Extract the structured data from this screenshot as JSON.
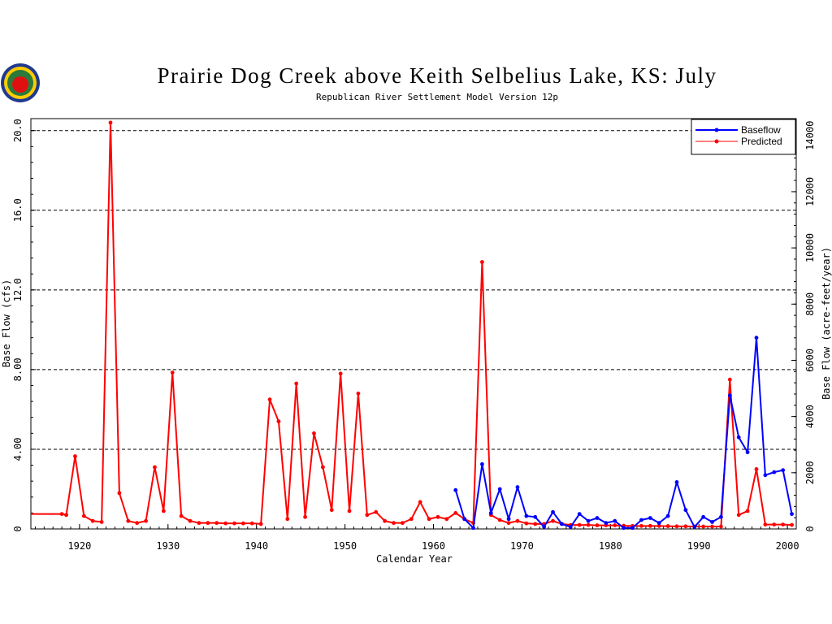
{
  "logo": {
    "name": "apple-logo-icon"
  },
  "chart_data": {
    "type": "line",
    "title": "Prairie Dog Creek above Keith Selbelius Lake, KS: July",
    "subtitle": "Republican River Settlement Model Version 12p",
    "xlabel": "Calendar Year",
    "ylabel": "Base Flow (cfs)",
    "ylabel_right": "Base Flow (acre-feet/year)",
    "xlim": [
      1914.5,
      2001
    ],
    "ylim": [
      0,
      20.6
    ],
    "ylim_right": [
      0,
      14600
    ],
    "x_ticks": [
      1920,
      1930,
      1940,
      1950,
      1960,
      1970,
      1980,
      1990,
      2000
    ],
    "x_tick_labels": [
      "1920",
      "1930",
      "1940",
      "1950",
      "1960",
      "1970",
      "1980",
      "1990",
      "2000"
    ],
    "y_ticks": [
      0,
      4,
      8,
      12,
      16,
      20
    ],
    "y_tick_labels": [
      "0",
      "4.00",
      "8.00",
      "12.0",
      "16.0",
      "20.0"
    ],
    "y_right_ticks": [
      0,
      2000,
      4000,
      6000,
      8000,
      10000,
      12000,
      14000
    ],
    "y_right_tick_labels": [
      "0",
      "2000",
      "4000",
      "6000",
      "8000",
      "10000",
      "12000",
      "14000"
    ],
    "grid": "horizontal dashed at major y ticks",
    "legend_position": "top-right",
    "series": [
      {
        "name": "Predicted",
        "color": "#ff0000",
        "points": [
          [
            1914.5,
            0.75
          ],
          [
            1918,
            0.75
          ],
          [
            1918.5,
            0.7
          ],
          [
            1919.5,
            3.65
          ],
          [
            1920.5,
            0.65
          ],
          [
            1921.5,
            0.4
          ],
          [
            1922.5,
            0.35
          ],
          [
            1923.5,
            20.4
          ],
          [
            1924.5,
            1.8
          ],
          [
            1925.5,
            0.4
          ],
          [
            1926.5,
            0.3
          ],
          [
            1927.5,
            0.4
          ],
          [
            1928.5,
            3.1
          ],
          [
            1929.5,
            0.9
          ],
          [
            1930.5,
            7.85
          ],
          [
            1931.5,
            0.65
          ],
          [
            1932.5,
            0.4
          ],
          [
            1933.5,
            0.3
          ],
          [
            1934.5,
            0.3
          ],
          [
            1935.5,
            0.3
          ],
          [
            1936.5,
            0.28
          ],
          [
            1937.5,
            0.28
          ],
          [
            1938.5,
            0.28
          ],
          [
            1939.5,
            0.28
          ],
          [
            1940.5,
            0.25
          ],
          [
            1941.5,
            6.5
          ],
          [
            1942.5,
            5.4
          ],
          [
            1943.5,
            0.5
          ],
          [
            1944.5,
            7.3
          ],
          [
            1945.5,
            0.6
          ],
          [
            1946.5,
            4.8
          ],
          [
            1947.5,
            3.1
          ],
          [
            1948.5,
            0.95
          ],
          [
            1949.5,
            7.8
          ],
          [
            1950.5,
            0.9
          ],
          [
            1951.5,
            6.8
          ],
          [
            1952.5,
            0.7
          ],
          [
            1953.5,
            0.85
          ],
          [
            1954.5,
            0.4
          ],
          [
            1955.5,
            0.3
          ],
          [
            1956.5,
            0.3
          ],
          [
            1957.5,
            0.5
          ],
          [
            1958.5,
            1.35
          ],
          [
            1959.5,
            0.5
          ],
          [
            1960.5,
            0.6
          ],
          [
            1961.5,
            0.5
          ],
          [
            1962.5,
            0.8
          ],
          [
            1963.5,
            0.5
          ],
          [
            1964.5,
            0.3
          ],
          [
            1965.5,
            13.4
          ],
          [
            1966.5,
            0.7
          ],
          [
            1967.5,
            0.45
          ],
          [
            1968.5,
            0.3
          ],
          [
            1969.5,
            0.4
          ],
          [
            1970.5,
            0.28
          ],
          [
            1971.5,
            0.25
          ],
          [
            1972.5,
            0.25
          ],
          [
            1973.5,
            0.4
          ],
          [
            1974.5,
            0.25
          ],
          [
            1975.5,
            0.2
          ],
          [
            1976.5,
            0.2
          ],
          [
            1977.5,
            0.2
          ],
          [
            1978.5,
            0.18
          ],
          [
            1979.5,
            0.18
          ],
          [
            1980.5,
            0.18
          ],
          [
            1981.5,
            0.16
          ],
          [
            1982.5,
            0.15
          ],
          [
            1983.5,
            0.15
          ],
          [
            1984.5,
            0.15
          ],
          [
            1985.5,
            0.15
          ],
          [
            1986.5,
            0.14
          ],
          [
            1987.5,
            0.13
          ],
          [
            1988.5,
            0.13
          ],
          [
            1989.5,
            0.12
          ],
          [
            1990.5,
            0.12
          ],
          [
            1991.5,
            0.12
          ],
          [
            1992.5,
            0.12
          ],
          [
            1993.5,
            7.5
          ],
          [
            1994.5,
            0.7
          ],
          [
            1995.5,
            0.9
          ],
          [
            1996.5,
            3.0
          ],
          [
            1997.5,
            0.22
          ],
          [
            1998.5,
            0.22
          ],
          [
            1999.5,
            0.22
          ],
          [
            2000.5,
            0.2
          ]
        ]
      },
      {
        "name": "Baseflow",
        "color": "#0000ff",
        "points": [
          [
            1962.5,
            1.95
          ],
          [
            1963.5,
            0.5
          ],
          [
            1964.5,
            0.05
          ],
          [
            1965.5,
            3.25
          ],
          [
            1966.5,
            0.8
          ],
          [
            1967.5,
            2.0
          ],
          [
            1968.5,
            0.5
          ],
          [
            1969.5,
            2.1
          ],
          [
            1970.5,
            0.65
          ],
          [
            1971.5,
            0.6
          ],
          [
            1972.5,
            0.1
          ],
          [
            1973.5,
            0.85
          ],
          [
            1974.5,
            0.25
          ],
          [
            1975.5,
            0.1
          ],
          [
            1976.5,
            0.75
          ],
          [
            1977.5,
            0.4
          ],
          [
            1978.5,
            0.55
          ],
          [
            1979.5,
            0.3
          ],
          [
            1980.5,
            0.4
          ],
          [
            1981.5,
            0.05
          ],
          [
            1982.5,
            0.05
          ],
          [
            1983.5,
            0.45
          ],
          [
            1984.5,
            0.55
          ],
          [
            1985.5,
            0.3
          ],
          [
            1986.5,
            0.65
          ],
          [
            1987.5,
            2.35
          ],
          [
            1988.5,
            0.95
          ],
          [
            1989.5,
            0.1
          ],
          [
            1990.5,
            0.6
          ],
          [
            1991.5,
            0.35
          ],
          [
            1992.5,
            0.6
          ],
          [
            1993.5,
            6.7
          ],
          [
            1994.5,
            4.6
          ],
          [
            1995.5,
            3.85
          ],
          [
            1996.5,
            9.6
          ],
          [
            1997.5,
            2.7
          ],
          [
            1998.5,
            2.85
          ],
          [
            1999.5,
            2.95
          ],
          [
            2000.5,
            0.75
          ]
        ]
      }
    ]
  }
}
